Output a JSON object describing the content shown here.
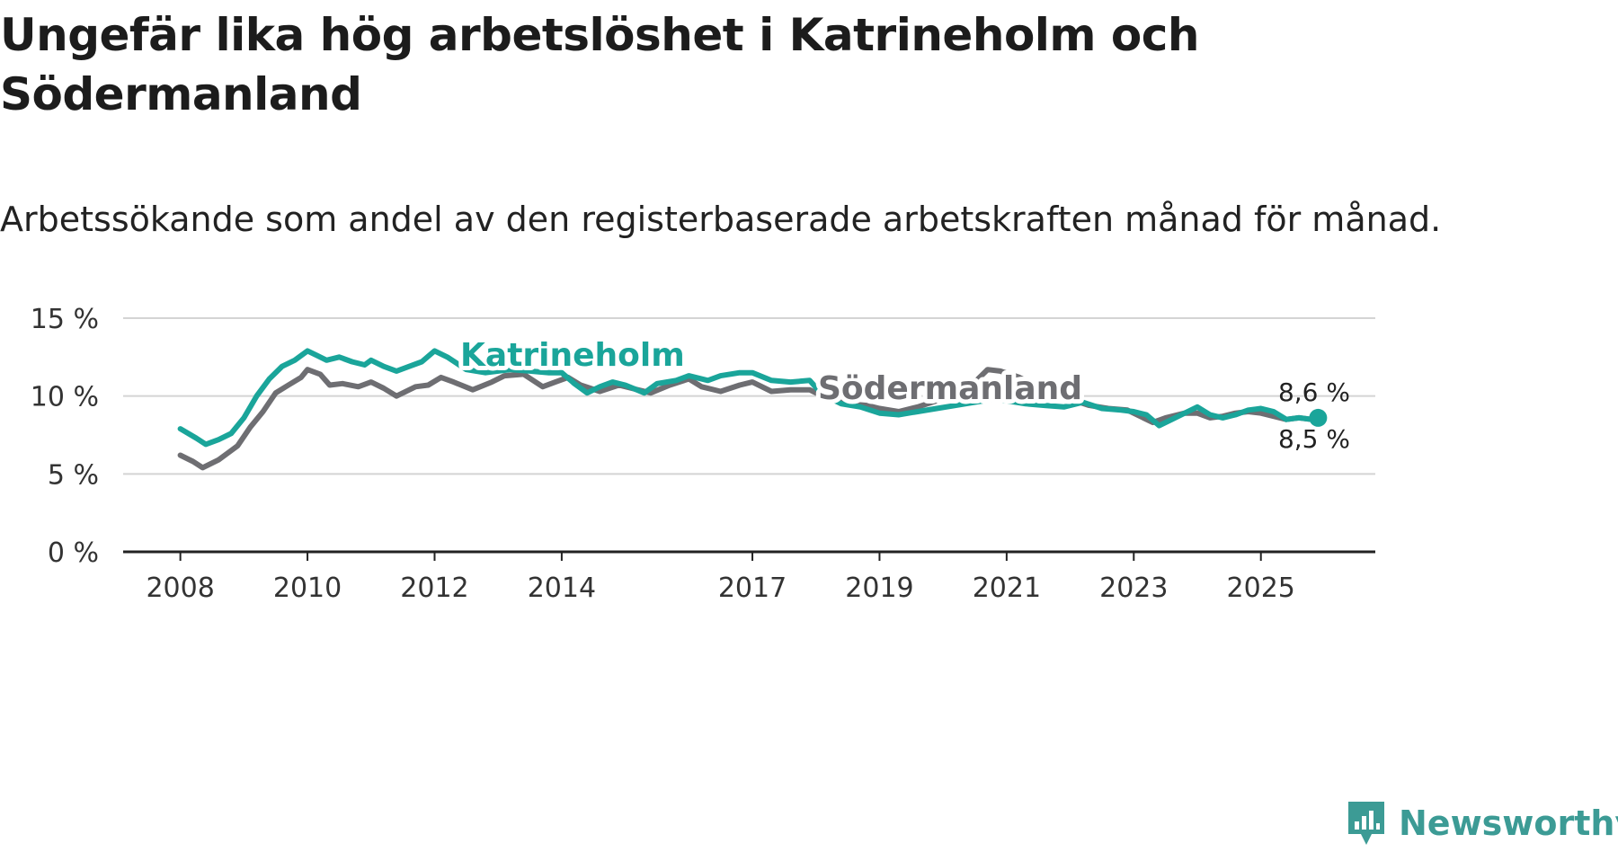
{
  "title": "Ungefär lika hög arbetslöshet i Katrineholm och Södermanland",
  "subtitle": "Arbetssökande som andel av den registerbaserade arbetskraften månad för månad.",
  "brand": {
    "name": "Newsworthy",
    "color": "#3c9b95",
    "icon": "newsworthy-logo-icon"
  },
  "colors": {
    "katrineholm": "#1aa59a",
    "sodermanland": "#6e6e72",
    "grid": "#d4d4d4",
    "axis": "#222222"
  },
  "chart_data": {
    "type": "line",
    "title": "Ungefär lika hög arbetslöshet i Katrineholm och Södermanland",
    "xlabel": "",
    "ylabel": "",
    "ylim": [
      0,
      15
    ],
    "xlim": [
      2007.1,
      2026.8
    ],
    "y_ticks": [
      0,
      5,
      10,
      15
    ],
    "y_tick_labels": [
      "0 %",
      "5 %",
      "10 %",
      "15 %"
    ],
    "x_ticks": [
      2008,
      2010,
      2012,
      2014,
      2017,
      2019,
      2021,
      2023,
      2025
    ],
    "x_tick_labels": [
      "2008",
      "2010",
      "2012",
      "2014",
      "2017",
      "2019",
      "2021",
      "2023",
      "2025"
    ],
    "grid": true,
    "series": [
      {
        "name": "Katrineholm",
        "end_label": "8,6 %",
        "x": [
          2008.0,
          2008.25,
          2008.4,
          2008.6,
          2008.8,
          2009.0,
          2009.2,
          2009.4,
          2009.6,
          2009.8,
          2010.0,
          2010.15,
          2010.3,
          2010.5,
          2010.7,
          2010.9,
          2011.0,
          2011.2,
          2011.4,
          2011.6,
          2011.8,
          2012.0,
          2012.2,
          2012.5,
          2012.8,
          2013.0,
          2013.2,
          2013.5,
          2013.8,
          2014.0,
          2014.2,
          2014.4,
          2014.6,
          2014.8,
          2015.0,
          2015.3,
          2015.5,
          2015.8,
          2016.0,
          2016.3,
          2016.5,
          2016.8,
          2017.0,
          2017.3,
          2017.6,
          2017.9,
          2018.1,
          2018.4,
          2018.7,
          2019.0,
          2019.3,
          2019.6,
          2019.9,
          2020.2,
          2020.5,
          2020.8,
          2021.0,
          2021.3,
          2021.6,
          2021.9,
          2022.2,
          2022.5,
          2022.8,
          2023.0,
          2023.2,
          2023.4,
          2023.6,
          2023.8,
          2024.0,
          2024.2,
          2024.4,
          2024.6,
          2024.8,
          2025.0,
          2025.2,
          2025.4,
          2025.6,
          2025.8,
          2025.9
        ],
        "values": [
          7.9,
          7.3,
          6.9,
          7.2,
          7.6,
          8.6,
          10.0,
          11.1,
          11.9,
          12.3,
          12.9,
          12.6,
          12.3,
          12.5,
          12.2,
          12.0,
          12.3,
          11.9,
          11.6,
          11.9,
          12.2,
          12.9,
          12.5,
          11.7,
          11.5,
          11.6,
          11.7,
          11.6,
          11.5,
          11.5,
          10.8,
          10.2,
          10.6,
          10.9,
          10.7,
          10.2,
          10.8,
          11.0,
          11.3,
          11.0,
          11.3,
          11.5,
          11.5,
          11.0,
          10.9,
          11.0,
          10.1,
          9.5,
          9.3,
          8.9,
          8.8,
          9.0,
          9.2,
          9.4,
          9.6,
          9.8,
          9.7,
          9.5,
          9.4,
          9.3,
          9.6,
          9.2,
          9.1,
          9.0,
          8.8,
          8.1,
          8.5,
          8.9,
          9.3,
          8.8,
          8.6,
          8.8,
          9.1,
          9.2,
          9.0,
          8.5,
          8.6,
          8.5,
          8.6
        ]
      },
      {
        "name": "Södermanland",
        "end_label": "8,5 %",
        "x": [
          2008.0,
          2008.2,
          2008.35,
          2008.6,
          2008.9,
          2009.1,
          2009.3,
          2009.5,
          2009.7,
          2009.9,
          2010.0,
          2010.2,
          2010.35,
          2010.55,
          2010.8,
          2011.0,
          2011.2,
          2011.4,
          2011.7,
          2011.9,
          2012.1,
          2012.3,
          2012.6,
          2012.9,
          2013.1,
          2013.4,
          2013.7,
          2013.9,
          2014.1,
          2014.3,
          2014.6,
          2014.9,
          2015.1,
          2015.4,
          2015.7,
          2016.0,
          2016.2,
          2016.5,
          2016.8,
          2017.0,
          2017.3,
          2017.6,
          2017.9,
          2018.2,
          2018.5,
          2018.8,
          2019.0,
          2019.3,
          2019.6,
          2019.9,
          2020.2,
          2020.5,
          2020.7,
          2020.9,
          2021.2,
          2021.5,
          2021.8,
          2022.0,
          2022.3,
          2022.6,
          2022.9,
          2023.1,
          2023.3,
          2023.5,
          2023.8,
          2024.0,
          2024.2,
          2024.4,
          2024.6,
          2024.8,
          2025.0,
          2025.2,
          2025.4,
          2025.6,
          2025.8,
          2025.9
        ],
        "values": [
          6.2,
          5.8,
          5.4,
          5.9,
          6.8,
          8.0,
          9.0,
          10.2,
          10.7,
          11.2,
          11.7,
          11.4,
          10.7,
          10.8,
          10.6,
          10.9,
          10.5,
          10.0,
          10.6,
          10.7,
          11.2,
          10.9,
          10.4,
          10.9,
          11.3,
          11.4,
          10.6,
          10.9,
          11.2,
          10.7,
          10.3,
          10.7,
          10.5,
          10.2,
          10.7,
          11.1,
          10.6,
          10.3,
          10.7,
          10.9,
          10.3,
          10.4,
          10.4,
          9.8,
          9.5,
          9.4,
          9.2,
          9.0,
          9.3,
          9.7,
          10.1,
          10.9,
          11.7,
          11.6,
          11.2,
          10.6,
          10.0,
          9.8,
          9.4,
          9.2,
          9.1,
          8.7,
          8.3,
          8.6,
          8.9,
          8.9,
          8.6,
          8.7,
          8.9,
          9.0,
          8.9,
          8.7,
          8.5,
          8.6,
          8.5,
          8.5
        ]
      }
    ]
  }
}
